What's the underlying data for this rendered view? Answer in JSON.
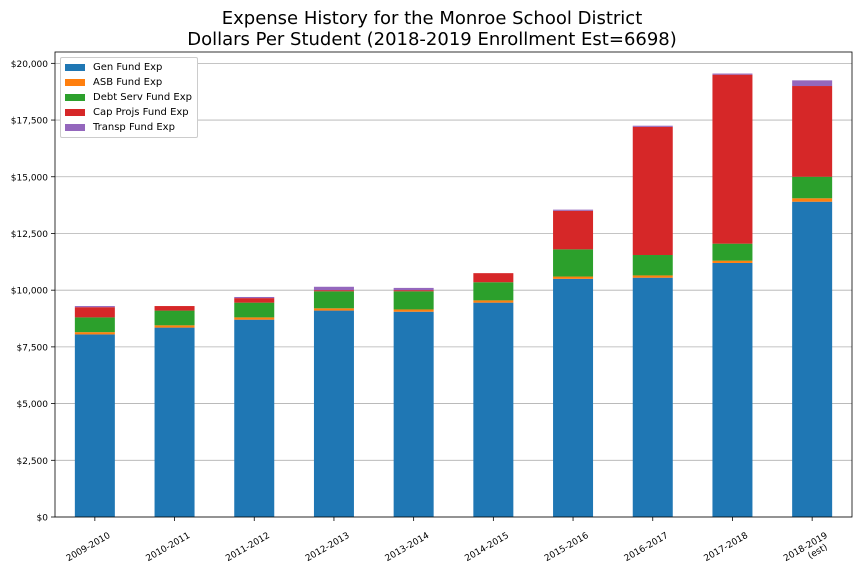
{
  "chart_data": {
    "type": "bar",
    "stacked": true,
    "title": "Expense History for the Monroe School District",
    "subtitle": "Dollars Per Student (2018-2019 Enrollment Est=6698)",
    "xlabel": "",
    "ylabel": "",
    "ylim": [
      0,
      20500
    ],
    "yticks": [
      "$0",
      "$2,500",
      "$5,000",
      "$7,500",
      "$10,000",
      "$12,500",
      "$15,000",
      "$17,500",
      "$20,000"
    ],
    "ytick_values": [
      0,
      2500,
      5000,
      7500,
      10000,
      12500,
      15000,
      17500,
      20000
    ],
    "grid": "horizontal",
    "legend_position": "top-left",
    "categories": [
      "2009-2010",
      "2010-2011",
      "2011-2012",
      "2012-2013",
      "2013-2014",
      "2014-2015",
      "2015-2016",
      "2016-2017",
      "2017-2018",
      "2018-2019\n(est)"
    ],
    "series": [
      {
        "name": "Gen Fund Exp",
        "color": "#1f77b4",
        "values": [
          8050,
          8350,
          8700,
          9100,
          9050,
          9450,
          10500,
          10550,
          11200,
          13900
        ]
      },
      {
        "name": "ASB Fund Exp",
        "color": "#ff7f0e",
        "values": [
          100,
          100,
          100,
          100,
          100,
          100,
          100,
          100,
          100,
          150
        ]
      },
      {
        "name": "Debt Serv Fund Exp",
        "color": "#2ca02c",
        "values": [
          650,
          650,
          650,
          750,
          800,
          800,
          1200,
          900,
          750,
          950
        ]
      },
      {
        "name": "Cap Projs Fund Exp",
        "color": "#d62728",
        "values": [
          450,
          200,
          200,
          50,
          50,
          400,
          1700,
          5650,
          7450,
          4000
        ]
      },
      {
        "name": "Transp Fund Exp",
        "color": "#9467bd",
        "values": [
          50,
          0,
          50,
          150,
          100,
          0,
          50,
          50,
          50,
          250
        ]
      }
    ]
  }
}
